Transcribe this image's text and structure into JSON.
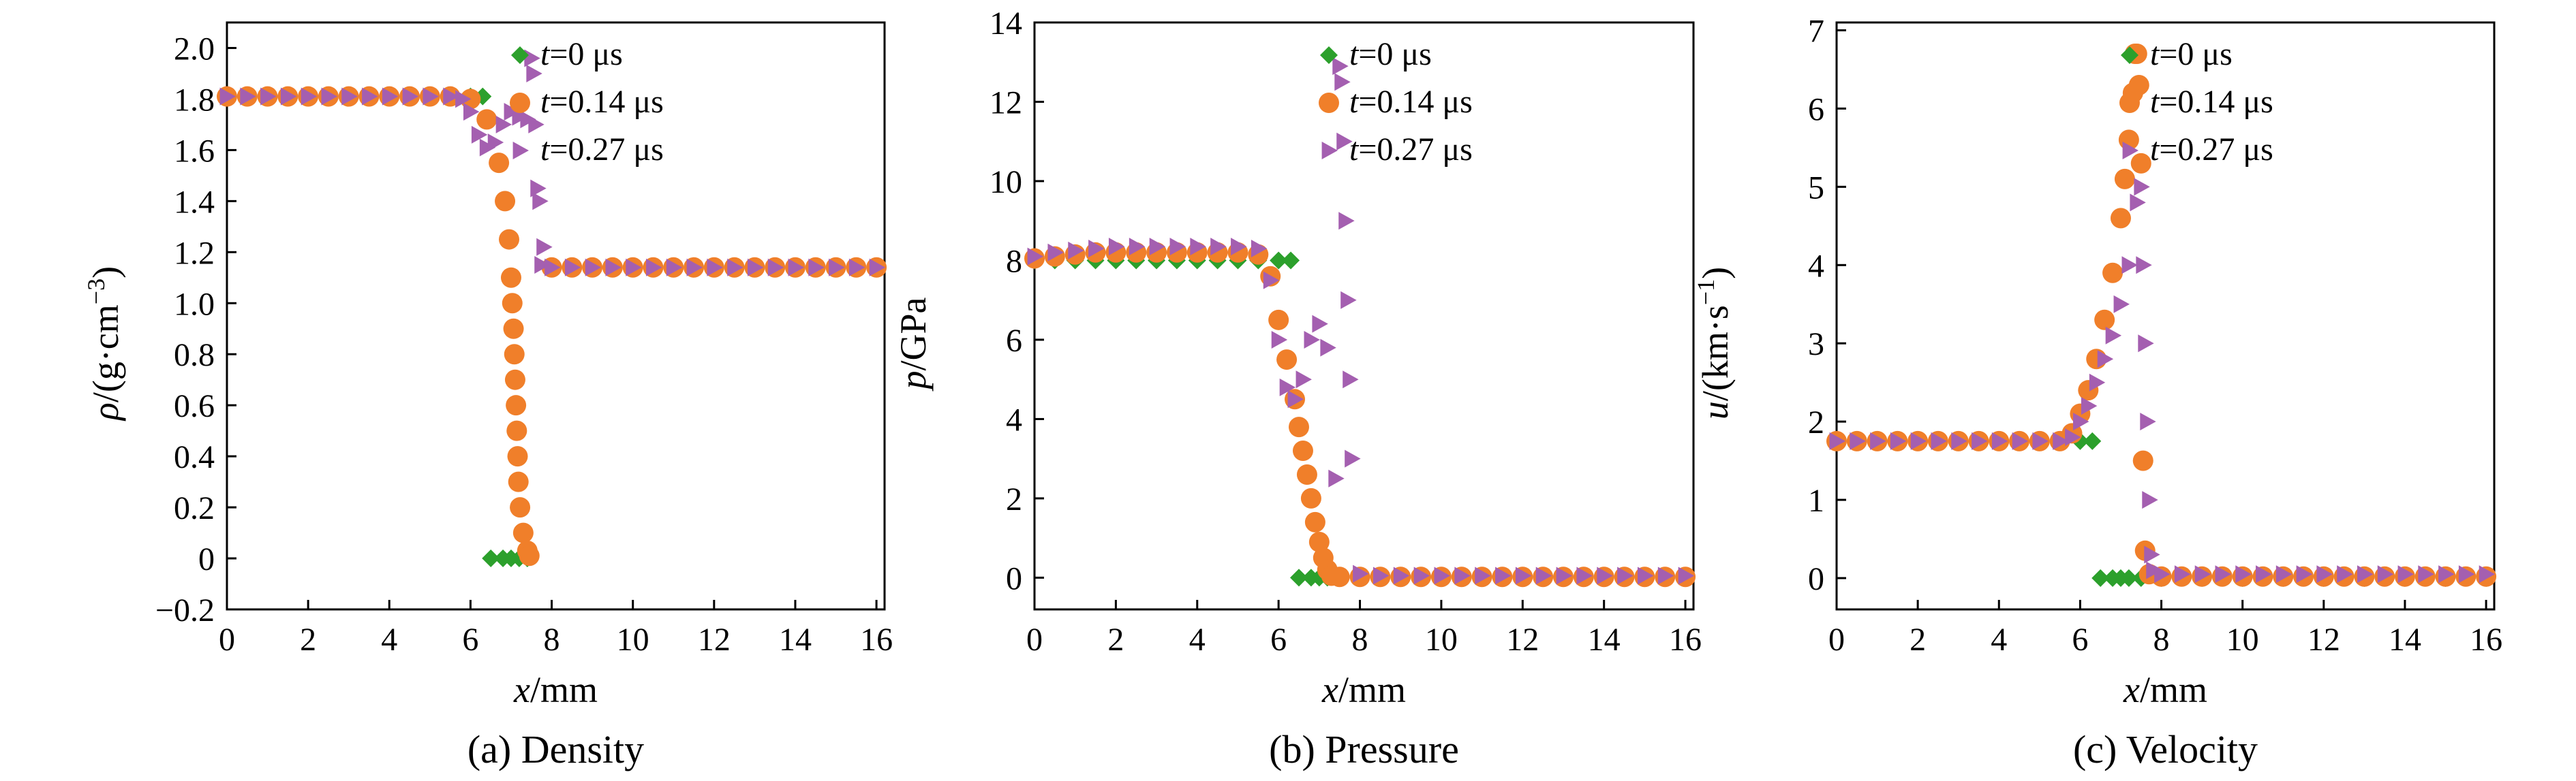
{
  "figure": {
    "colors": {
      "t0": "#2ca02c",
      "t014": "#f07f2a",
      "t027": "#a45fb0",
      "axis": "#000000"
    },
    "legend_markers": {
      "t0": "diamond",
      "t014": "circle",
      "t027": "right-triangle"
    }
  },
  "chart_data": [
    {
      "type": "scatter",
      "caption": "(a) Density",
      "xlabel_var": "x",
      "xlabel_unit": "/mm",
      "ylabel_var": "ρ",
      "ylabel_unit": "/(g·cm",
      "ylabel_exp": "−3",
      "ylabel_close": ")",
      "xlim": [
        0,
        16.2
      ],
      "ylim": [
        -0.2,
        2.1
      ],
      "xticks": [
        0,
        2,
        4,
        6,
        8,
        10,
        12,
        14,
        16
      ],
      "xtick_labels": [
        "0",
        "2",
        "4",
        "6",
        "8",
        "10",
        "12",
        "14",
        "16"
      ],
      "yticks": [
        -0.2,
        0,
        0.2,
        0.4,
        0.6,
        0.8,
        1.0,
        1.2,
        1.4,
        1.6,
        1.8,
        2.0
      ],
      "ytick_labels": [
        "−0.2",
        "0",
        "0.2",
        "0.4",
        "0.6",
        "0.8",
        "1.0",
        "1.2",
        "1.4",
        "1.6",
        "1.8",
        "2.0"
      ],
      "legend_position": "top-right",
      "grid": false,
      "series": [
        {
          "key": "t0",
          "legend_var": "t",
          "legend_rest": "=0 μs",
          "x": [
            0,
            0.5,
            1,
            1.5,
            2,
            2.5,
            3,
            3.5,
            4,
            4.5,
            5,
            5.5,
            6,
            6.3,
            6.5,
            6.8,
            7.0,
            7.2,
            7.4
          ],
          "y": [
            1.81,
            1.81,
            1.81,
            1.81,
            1.81,
            1.81,
            1.81,
            1.81,
            1.81,
            1.81,
            1.81,
            1.81,
            1.81,
            1.81,
            0,
            0,
            0,
            0,
            0
          ]
        },
        {
          "key": "t014",
          "legend_var": "t",
          "legend_rest": "=0.14 μs",
          "x": [
            0,
            0.5,
            1,
            1.5,
            2,
            2.5,
            3,
            3.5,
            4,
            4.5,
            5,
            5.5,
            6,
            6.4,
            6.7,
            6.85,
            6.95,
            7.0,
            7.03,
            7.06,
            7.08,
            7.1,
            7.12,
            7.14,
            7.16,
            7.18,
            7.22,
            7.3,
            7.4,
            7.45,
            8.0,
            8.5,
            9,
            9.5,
            10,
            10.5,
            11,
            11.5,
            12,
            12.5,
            13,
            13.5,
            14,
            14.5,
            15,
            15.5,
            16
          ],
          "y": [
            1.81,
            1.81,
            1.81,
            1.81,
            1.81,
            1.81,
            1.81,
            1.81,
            1.81,
            1.81,
            1.81,
            1.81,
            1.8,
            1.72,
            1.55,
            1.4,
            1.25,
            1.1,
            1.0,
            0.9,
            0.8,
            0.7,
            0.6,
            0.5,
            0.4,
            0.3,
            0.2,
            0.1,
            0.03,
            0.01,
            1.14,
            1.14,
            1.14,
            1.14,
            1.14,
            1.14,
            1.14,
            1.14,
            1.14,
            1.14,
            1.14,
            1.14,
            1.14,
            1.14,
            1.14,
            1.14,
            1.14
          ]
        },
        {
          "key": "t027",
          "legend_var": "t",
          "legend_rest": "=0.27 μs",
          "x": [
            0,
            0.5,
            1,
            1.5,
            2,
            2.5,
            3,
            3.5,
            4,
            4.5,
            5,
            5.5,
            5.8,
            6.0,
            6.2,
            6.4,
            6.6,
            6.8,
            7.0,
            7.2,
            7.4,
            7.5,
            7.55,
            7.6,
            7.65,
            7.7,
            7.75,
            7.8,
            8.0,
            8.5,
            9,
            9.5,
            10,
            10.5,
            11,
            11.5,
            12,
            12.5,
            13,
            13.5,
            14,
            14.5,
            15,
            15.5,
            16
          ],
          "y": [
            1.81,
            1.81,
            1.81,
            1.81,
            1.81,
            1.81,
            1.81,
            1.81,
            1.81,
            1.81,
            1.81,
            1.81,
            1.8,
            1.75,
            1.66,
            1.61,
            1.63,
            1.7,
            1.75,
            1.73,
            1.72,
            1.96,
            1.9,
            1.7,
            1.45,
            1.4,
            1.15,
            1.22,
            1.14,
            1.14,
            1.14,
            1.14,
            1.14,
            1.14,
            1.14,
            1.14,
            1.14,
            1.14,
            1.14,
            1.14,
            1.14,
            1.14,
            1.14,
            1.14,
            1.14
          ]
        }
      ]
    },
    {
      "type": "scatter",
      "caption": "(b) Pressure",
      "xlabel_var": "x",
      "xlabel_unit": "/mm",
      "ylabel_var": "p",
      "ylabel_unit": "/GPa",
      "ylabel_exp": "",
      "ylabel_close": "",
      "xlim": [
        0,
        16.2
      ],
      "ylim": [
        -0.8,
        14
      ],
      "xticks": [
        0,
        2,
        4,
        6,
        8,
        10,
        12,
        14,
        16
      ],
      "xtick_labels": [
        "0",
        "2",
        "4",
        "6",
        "8",
        "10",
        "12",
        "14",
        "16"
      ],
      "yticks": [
        0,
        2,
        4,
        6,
        8,
        10,
        12,
        14
      ],
      "ytick_labels": [
        "0",
        "2",
        "4",
        "6",
        "8",
        "10",
        "12",
        "14"
      ],
      "legend_position": "top-right",
      "grid": false,
      "series": [
        {
          "key": "t0",
          "legend_var": "t",
          "legend_rest": "=0 μs",
          "x": [
            0,
            0.5,
            1,
            1.5,
            2,
            2.5,
            3,
            3.5,
            4,
            4.5,
            5,
            5.5,
            6,
            6.3,
            6.5,
            6.8,
            7.0,
            7.2,
            7.5,
            8,
            9,
            10,
            11,
            12,
            13,
            14,
            15,
            16
          ],
          "y": [
            8.0,
            8.0,
            8.0,
            8.0,
            8.0,
            8.0,
            8.0,
            8.0,
            8.0,
            8.0,
            8.0,
            8.0,
            8.0,
            8.0,
            0,
            0,
            0,
            0,
            0,
            0,
            0,
            0,
            0,
            0,
            0,
            0,
            0,
            0
          ]
        },
        {
          "key": "t014",
          "legend_var": "t",
          "legend_rest": "=0.14 μs",
          "x": [
            0,
            0.5,
            1,
            1.5,
            2,
            2.5,
            3,
            3.5,
            4,
            4.5,
            5,
            5.5,
            5.8,
            6.0,
            6.2,
            6.4,
            6.5,
            6.6,
            6.7,
            6.8,
            6.9,
            7.0,
            7.1,
            7.2,
            7.3,
            7.5,
            8,
            8.5,
            9,
            9.5,
            10,
            10.5,
            11,
            11.5,
            12,
            12.5,
            13,
            13.5,
            14,
            14.5,
            15,
            15.5,
            16
          ],
          "y": [
            8.05,
            8.1,
            8.15,
            8.2,
            8.2,
            8.2,
            8.2,
            8.2,
            8.2,
            8.2,
            8.2,
            8.15,
            7.6,
            6.5,
            5.5,
            4.5,
            3.8,
            3.2,
            2.6,
            2.0,
            1.4,
            0.9,
            0.5,
            0.2,
            0.05,
            0.02,
            0.02,
            0.02,
            0.02,
            0.02,
            0.02,
            0.02,
            0.02,
            0.02,
            0.02,
            0.02,
            0.02,
            0.02,
            0.02,
            0.02,
            0.02,
            0.02,
            0.02
          ]
        },
        {
          "key": "t027",
          "legend_var": "t",
          "legend_rest": "=0.27 μs",
          "x": [
            0,
            0.5,
            1,
            1.5,
            2,
            2.5,
            3,
            3.5,
            4,
            4.5,
            5,
            5.5,
            5.8,
            6.0,
            6.2,
            6.4,
            6.6,
            6.8,
            7.0,
            7.2,
            7.4,
            7.5,
            7.55,
            7.6,
            7.65,
            7.7,
            7.75,
            7.8,
            8.0,
            8.5,
            9,
            9.5,
            10,
            10.5,
            11,
            11.5,
            12,
            12.5,
            13,
            13.5,
            14,
            14.5,
            15,
            15.5,
            16
          ],
          "y": [
            8.1,
            8.2,
            8.25,
            8.3,
            8.35,
            8.35,
            8.35,
            8.35,
            8.35,
            8.35,
            8.35,
            8.3,
            7.5,
            6.0,
            4.8,
            4.5,
            5.0,
            6.0,
            6.4,
            5.8,
            2.5,
            12.9,
            12.5,
            11.0,
            9.0,
            7.0,
            5.0,
            3.0,
            0.1,
            0.05,
            0.05,
            0.05,
            0.05,
            0.05,
            0.05,
            0.05,
            0.05,
            0.05,
            0.05,
            0.05,
            0.05,
            0.05,
            0.05,
            0.05,
            0.05
          ]
        }
      ]
    },
    {
      "type": "scatter",
      "caption": "(c) Velocity",
      "xlabel_var": "x",
      "xlabel_unit": "/mm",
      "ylabel_var": "u",
      "ylabel_unit": "/(km·s",
      "ylabel_exp": "−1",
      "ylabel_close": ")",
      "xlim": [
        0,
        16.2
      ],
      "ylim": [
        -0.4,
        7.1
      ],
      "xticks": [
        0,
        2,
        4,
        6,
        8,
        10,
        12,
        14,
        16
      ],
      "xtick_labels": [
        "0",
        "2",
        "4",
        "6",
        "8",
        "10",
        "12",
        "14",
        "16"
      ],
      "yticks": [
        0,
        1,
        2,
        3,
        4,
        5,
        6,
        7
      ],
      "ytick_labels": [
        "0",
        "1",
        "2",
        "3",
        "4",
        "5",
        "6",
        "7"
      ],
      "legend_position": "top-right",
      "grid": false,
      "series": [
        {
          "key": "t0",
          "legend_var": "t",
          "legend_rest": "=0 μs",
          "x": [
            0,
            0.5,
            1,
            1.5,
            2,
            2.5,
            3,
            3.5,
            4,
            4.5,
            5,
            5.5,
            6,
            6.3,
            6.5,
            6.8,
            7.0,
            7.2,
            7.5,
            8,
            9,
            10,
            11,
            12,
            13,
            14,
            15,
            16
          ],
          "y": [
            1.75,
            1.75,
            1.75,
            1.75,
            1.75,
            1.75,
            1.75,
            1.75,
            1.75,
            1.75,
            1.75,
            1.75,
            1.75,
            1.75,
            0,
            0,
            0,
            0,
            0,
            0,
            0,
            0,
            0,
            0,
            0,
            0,
            0,
            0
          ]
        },
        {
          "key": "t014",
          "legend_var": "t",
          "legend_rest": "=0.14 μs",
          "x": [
            0,
            0.5,
            1,
            1.5,
            2,
            2.5,
            3,
            3.5,
            4,
            4.5,
            5,
            5.5,
            5.8,
            6.0,
            6.2,
            6.4,
            6.6,
            6.8,
            7.0,
            7.1,
            7.2,
            7.3,
            7.35,
            7.4,
            7.45,
            7.5,
            7.55,
            7.6,
            7.7,
            8.0,
            8.5,
            9,
            9.5,
            10,
            10.5,
            11,
            11.5,
            12,
            12.5,
            13,
            13.5,
            14,
            14.5,
            15,
            15.5,
            16
          ],
          "y": [
            1.75,
            1.75,
            1.75,
            1.75,
            1.75,
            1.75,
            1.75,
            1.75,
            1.75,
            1.75,
            1.75,
            1.75,
            1.85,
            2.1,
            2.4,
            2.8,
            3.3,
            3.9,
            4.6,
            5.1,
            5.6,
            6.2,
            6.7,
            6.7,
            6.3,
            5.3,
            1.5,
            0.35,
            0.05,
            0.02,
            0.02,
            0.02,
            0.02,
            0.02,
            0.02,
            0.02,
            0.02,
            0.02,
            0.02,
            0.02,
            0.02,
            0.02,
            0.02,
            0.02,
            0.02,
            0.02
          ]
        },
        {
          "key": "t027",
          "legend_var": "t",
          "legend_rest": "=0.27 μs",
          "x": [
            0,
            0.5,
            1,
            1.5,
            2,
            2.5,
            3,
            3.5,
            4,
            4.5,
            5,
            5.5,
            5.8,
            6.0,
            6.2,
            6.4,
            6.6,
            6.8,
            7.0,
            7.2,
            7.4,
            7.5,
            7.55,
            7.6,
            7.65,
            7.7,
            7.75,
            7.8,
            8.0,
            8.5,
            9,
            9.5,
            10,
            10.5,
            11,
            11.5,
            12,
            12.5,
            13,
            13.5,
            14,
            14.5,
            15,
            15.5,
            16
          ],
          "y": [
            1.75,
            1.75,
            1.75,
            1.75,
            1.75,
            1.75,
            1.75,
            1.75,
            1.75,
            1.75,
            1.75,
            1.75,
            1.8,
            2.0,
            2.2,
            2.5,
            2.8,
            3.1,
            3.5,
            4.0,
            4.8,
            5.0,
            4.0,
            3.0,
            2.0,
            1.0,
            0.3,
            0.1,
            0.05,
            0.05,
            0.05,
            0.05,
            0.05,
            0.05,
            0.05,
            0.05,
            0.05,
            0.05,
            0.05,
            0.05,
            0.05,
            0.05,
            0.05,
            0.05,
            0.05
          ]
        }
      ]
    }
  ]
}
